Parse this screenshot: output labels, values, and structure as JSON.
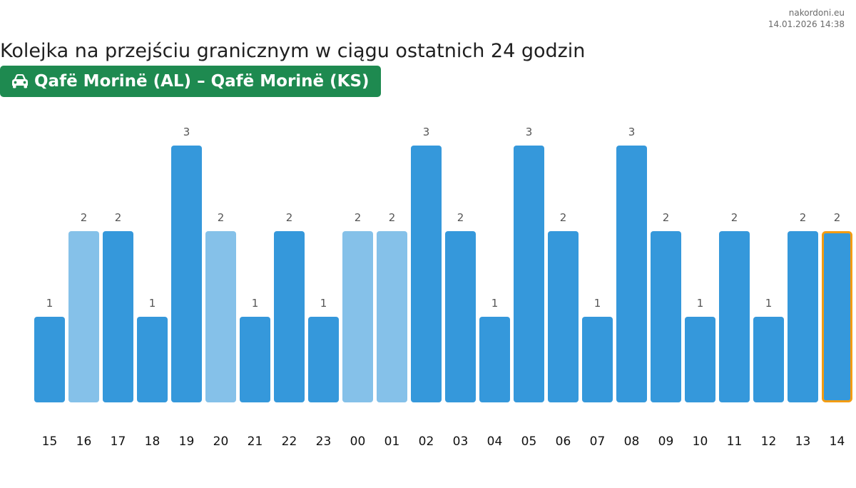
{
  "source": {
    "site": "nakordoni.eu",
    "timestamp": "14.01.2026 14:38"
  },
  "title": "Kolejka na przejściu granicznym w ciągu ostatnich 24 godzin",
  "badge": {
    "icon": "car-icon",
    "label": "Qafë Morinë (AL) – Qafë Morinë (KS)",
    "color": "#1e8a50"
  },
  "chart_data": {
    "type": "bar",
    "categories": [
      "15",
      "16",
      "17",
      "18",
      "19",
      "20",
      "21",
      "22",
      "23",
      "00",
      "01",
      "02",
      "03",
      "04",
      "05",
      "06",
      "07",
      "08",
      "09",
      "10",
      "11",
      "12",
      "13",
      "14"
    ],
    "values": [
      1,
      2,
      2,
      1,
      3,
      2,
      1,
      2,
      1,
      2,
      2,
      3,
      2,
      1,
      3,
      2,
      1,
      3,
      2,
      1,
      2,
      1,
      2,
      2
    ],
    "light_indices": [
      1,
      5,
      9,
      10
    ],
    "highlight_index": 23,
    "ylim": [
      0,
      3
    ],
    "colors": {
      "bar": "#3598db",
      "bar_light": "#85c1e9",
      "highlight_border": "#f39c12"
    },
    "grid": false,
    "legend": "none",
    "data_labels": true
  }
}
